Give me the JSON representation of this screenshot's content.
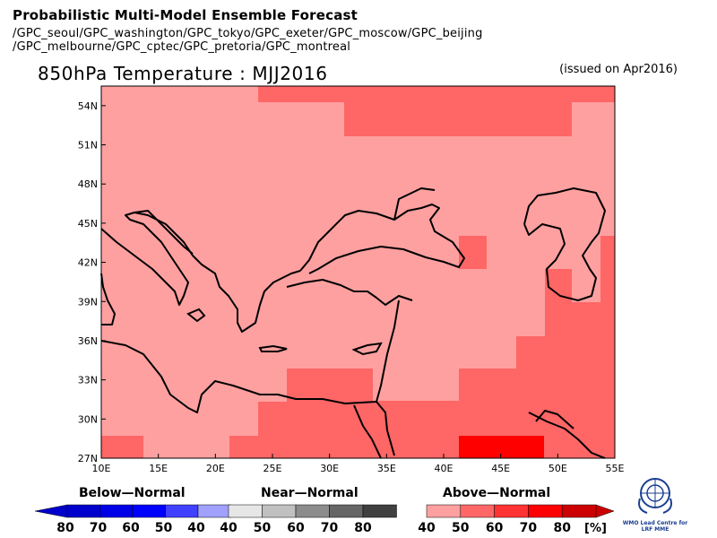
{
  "header": {
    "title": "Probabilistic Multi-Model Ensemble Forecast",
    "line1": "/GPC_seoul/GPC_washington/GPC_tokyo/GPC_exeter/GPC_moscow/GPC_beijing",
    "line2": "/GPC_melbourne/GPC_cptec/GPC_pretoria/GPC_montreal"
  },
  "map": {
    "title": "850hPa Temperature : MJJ2016",
    "issued": "(issued on Apr2016)",
    "lon_labels": [
      "10E",
      "15E",
      "20E",
      "25E",
      "30E",
      "35E",
      "40E",
      "45E",
      "50E",
      "55E"
    ],
    "lat_labels": [
      "54N",
      "51N",
      "48N",
      "45N",
      "42N",
      "39N",
      "36N",
      "33N",
      "30N",
      "27N"
    ],
    "colors": {
      "land_line": "#000000",
      "p40": "#ffa0a0",
      "p50": "#ff6666",
      "p60": "#ff3333",
      "p70": "#ff0000"
    }
  },
  "legend": {
    "below": {
      "label": "Below—Normal",
      "ticks": [
        "80",
        "70",
        "60",
        "50",
        "40"
      ]
    },
    "near": {
      "label": "Near—Normal",
      "ticks": [
        "40",
        "50",
        "60",
        "70",
        "80"
      ]
    },
    "above": {
      "label": "Above—Normal",
      "ticks": [
        "40",
        "50",
        "60",
        "70",
        "80"
      ],
      "unit": "[%]"
    },
    "colors": {
      "below": [
        "#0000cc",
        "#0000e6",
        "#0000ff",
        "#4040ff",
        "#a0a0ff"
      ],
      "near": [
        "#e6e6e6",
        "#c0c0c0",
        "#8c8c8c",
        "#666666",
        "#404040"
      ],
      "above": [
        "#ffa0a0",
        "#ff6666",
        "#ff3333",
        "#ff0000",
        "#cc0000"
      ]
    }
  },
  "logo": {
    "text_line1": "WMO Lead Centre for",
    "text_line2": "LRF MME"
  }
}
